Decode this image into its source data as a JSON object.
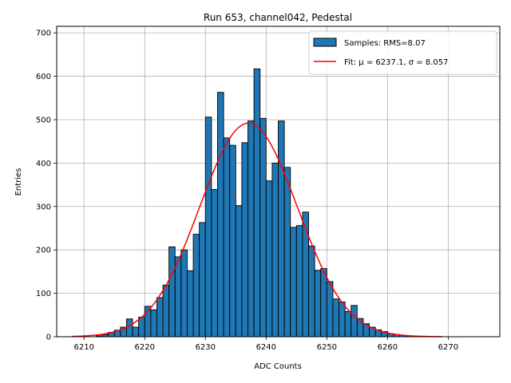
{
  "chart_data": {
    "type": "bar",
    "title": "Run 653, channel042, Pedestal",
    "xlabel": "ADC Counts",
    "ylabel": "Entries",
    "xlim": [
      6205.5,
      6278.5
    ],
    "ylim": [
      0,
      715
    ],
    "grid": true,
    "bin_width": 1,
    "x_ticks": [
      6210,
      6220,
      6230,
      6240,
      6250,
      6260,
      6270
    ],
    "y_ticks": [
      0,
      100,
      200,
      300,
      400,
      500,
      600,
      700
    ],
    "bar_color": "#1f77b4",
    "fit_color": "#ff0000",
    "histogram": {
      "name": "Samples: RMS=8.07",
      "bin_starts": [
        6212,
        6213,
        6214,
        6215,
        6216,
        6217,
        6218,
        6219,
        6220,
        6221,
        6222,
        6223,
        6224,
        6225,
        6226,
        6227,
        6228,
        6229,
        6230,
        6231,
        6232,
        6233,
        6234,
        6235,
        6236,
        6237,
        6238,
        6239,
        6240,
        6241,
        6242,
        6243,
        6244,
        6245,
        6246,
        6247,
        6248,
        6249,
        6250,
        6251,
        6252,
        6253,
        6254,
        6255,
        6256,
        6257,
        6258,
        6259,
        6260,
        6261,
        6262,
        6263
      ],
      "values": [
        2,
        5,
        10,
        15,
        22,
        41,
        22,
        45,
        70,
        62,
        90,
        119,
        207,
        184,
        200,
        152,
        236,
        263,
        506,
        339,
        563,
        458,
        441,
        302,
        447,
        497,
        617,
        503,
        359,
        400,
        497,
        390,
        252,
        256,
        287,
        209,
        153,
        157,
        127,
        87,
        80,
        58,
        72,
        42,
        30,
        22,
        16,
        12,
        7,
        5,
        3,
        1
      ]
    },
    "fit": {
      "name": "Fit: μ = 6237.1, σ = 8.057",
      "mu": 6237.1,
      "sigma": 8.057,
      "amplitude": 492,
      "x_range": [
        6208,
        6269
      ]
    },
    "legend_location": "upper right"
  }
}
